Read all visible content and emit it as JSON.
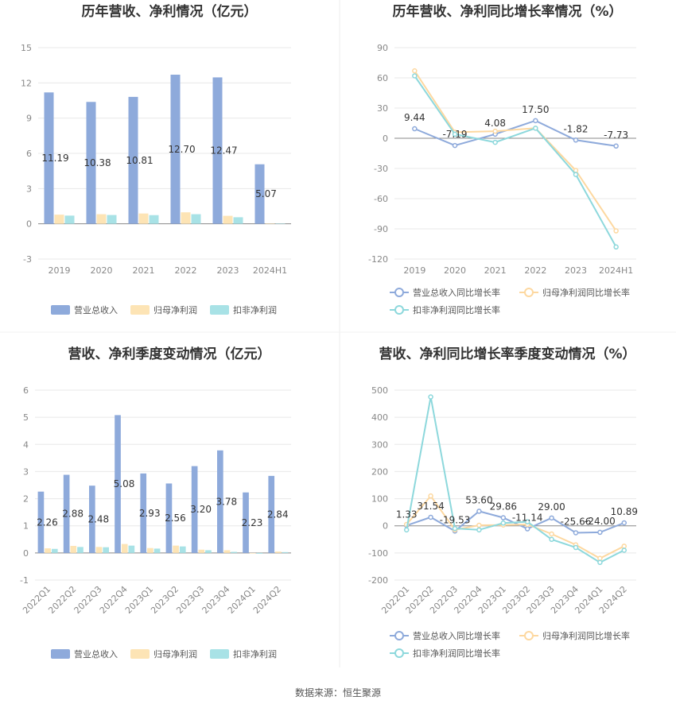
{
  "source_note": "数据来源：恒生聚源",
  "chart_data": [
    {
      "type": "bar",
      "title": "历年营收、净利情况（亿元）",
      "categories": [
        "2019",
        "2020",
        "2021",
        "2022",
        "2023",
        "2024H1"
      ],
      "ylim": [
        -3,
        15
      ],
      "yticks": [
        -3,
        0,
        3,
        6,
        9,
        12,
        15
      ],
      "series": [
        {
          "name": "营业总收入",
          "color": "#8eaadb",
          "values": [
            11.19,
            10.38,
            10.81,
            12.7,
            12.47,
            5.07
          ],
          "labels": [
            "11.19",
            "10.38",
            "10.81",
            "12.70",
            "12.47",
            "5.07"
          ]
        },
        {
          "name": "归母净利润",
          "color": "#fde4b5",
          "values": [
            0.78,
            0.82,
            0.88,
            0.98,
            0.68,
            0.02
          ]
        },
        {
          "name": "扣非净利润",
          "color": "#a8e2e6",
          "values": [
            0.7,
            0.75,
            0.74,
            0.82,
            0.56,
            0.01
          ]
        }
      ]
    },
    {
      "type": "line",
      "title": "历年营收、净利同比增长率情况（%）",
      "categories": [
        "2019",
        "2020",
        "2021",
        "2022",
        "2023",
        "2024H1"
      ],
      "ylim": [
        -120,
        90
      ],
      "yticks": [
        -120,
        -90,
        -60,
        -30,
        0,
        30,
        60,
        90
      ],
      "series": [
        {
          "name": "营业总收入同比增长率",
          "color": "#8eaadb",
          "values": [
            9.44,
            -7.19,
            4.08,
            17.5,
            -1.82,
            -7.73
          ],
          "labels": [
            "9.44",
            "-7.19",
            "4.08",
            "17.50",
            "-1.82",
            "-7.73"
          ]
        },
        {
          "name": "归母净利润同比增长率",
          "color": "#fdd8a0",
          "values": [
            67,
            6,
            7,
            10,
            -32,
            -92
          ]
        },
        {
          "name": "扣非净利润同比增长率",
          "color": "#8dd8dc",
          "values": [
            62,
            4,
            -4,
            10,
            -36,
            -108
          ]
        }
      ]
    },
    {
      "type": "bar",
      "title": "营收、净利季度变动情况（亿元）",
      "categories": [
        "2022Q1",
        "2022Q2",
        "2022Q3",
        "2022Q4",
        "2023Q1",
        "2023Q2",
        "2023Q3",
        "2023Q4",
        "2024Q1",
        "2024Q2"
      ],
      "ylim": [
        -1,
        6
      ],
      "yticks": [
        -1,
        0,
        1,
        2,
        3,
        4,
        5,
        6
      ],
      "series": [
        {
          "name": "营业总收入",
          "color": "#8eaadb",
          "values": [
            2.26,
            2.88,
            2.48,
            5.08,
            2.93,
            2.56,
            3.2,
            3.78,
            2.23,
            2.84
          ],
          "labels": [
            "2.26",
            "2.88",
            "2.48",
            "5.08",
            "2.93",
            "2.56",
            "3.20",
            "3.78",
            "2.23",
            "2.84"
          ]
        },
        {
          "name": "归母净利润",
          "color": "#fde4b5",
          "values": [
            0.17,
            0.26,
            0.22,
            0.33,
            0.18,
            0.27,
            0.12,
            0.1,
            -0.02,
            0.05
          ]
        },
        {
          "name": "扣非净利润",
          "color": "#a8e2e6",
          "values": [
            0.15,
            0.22,
            0.21,
            0.27,
            0.16,
            0.24,
            0.1,
            0.04,
            -0.03,
            0.03
          ]
        }
      ]
    },
    {
      "type": "line",
      "title": "营收、净利同比增长率季度变动情况（%）",
      "categories": [
        "2022Q1",
        "2022Q2",
        "2022Q3",
        "2022Q4",
        "2023Q1",
        "2023Q2",
        "2023Q3",
        "2023Q4",
        "2024Q1",
        "2024Q2"
      ],
      "ylim": [
        -200,
        500
      ],
      "yticks": [
        -200,
        -100,
        0,
        100,
        200,
        300,
        400,
        500
      ],
      "series": [
        {
          "name": "营业总收入同比增长率",
          "color": "#8eaadb",
          "values": [
            1.33,
            31.54,
            -19.53,
            53.6,
            29.86,
            -11.14,
            29.0,
            -25.66,
            -24.0,
            10.89
          ],
          "labels": [
            "1.33",
            "31.54",
            "-19.53",
            "53.60",
            "29.86",
            "-11.14",
            "29.00",
            "-25.66",
            "-24.00",
            "10.89"
          ]
        },
        {
          "name": "归母净利润同比增长率",
          "color": "#fdd8a0",
          "values": [
            5,
            110,
            -15,
            2,
            3,
            5,
            -30,
            -70,
            -120,
            -75
          ]
        },
        {
          "name": "扣非净利润同比增长率",
          "color": "#8dd8dc",
          "values": [
            -15,
            475,
            -10,
            -15,
            10,
            15,
            -50,
            -80,
            -135,
            -90
          ]
        }
      ]
    }
  ]
}
